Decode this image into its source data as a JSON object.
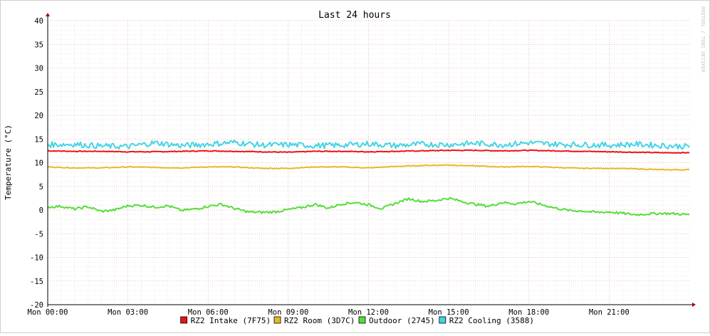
{
  "watermark": "RRDTOOL / TOBI OETIKER",
  "chart_data": {
    "type": "line",
    "title": "Last 24 hours",
    "xlabel": "",
    "ylabel": "Temperature (°C)",
    "ylim": [
      -20,
      40
    ],
    "y_ticks": [
      40,
      35,
      30,
      25,
      20,
      15,
      10,
      5,
      0,
      -5,
      -10,
      -15,
      -20
    ],
    "xlim_hours": [
      0,
      24
    ],
    "x_ticks": [
      {
        "label": "Mon 00:00",
        "hour": 0
      },
      {
        "label": "Mon 03:00",
        "hour": 3
      },
      {
        "label": "Mon 06:00",
        "hour": 6
      },
      {
        "label": "Mon 09:00",
        "hour": 9
      },
      {
        "label": "Mon 12:00",
        "hour": 12
      },
      {
        "label": "Mon 15:00",
        "hour": 15
      },
      {
        "label": "Mon 18:00",
        "hour": 18
      },
      {
        "label": "Mon 21:00",
        "hour": 21
      }
    ],
    "grid": true,
    "legend_position": "bottom",
    "series": [
      {
        "name": "RZ2 Intake (7F75)",
        "color": "#ee1111",
        "points": [
          [
            0,
            12.5
          ],
          [
            1,
            12.4
          ],
          [
            2,
            12.4
          ],
          [
            3,
            12.3
          ],
          [
            4,
            12.3
          ],
          [
            5,
            12.4
          ],
          [
            6,
            12.5
          ],
          [
            7,
            12.4
          ],
          [
            8,
            12.3
          ],
          [
            9,
            12.2
          ],
          [
            10,
            12.4
          ],
          [
            11,
            12.4
          ],
          [
            12,
            12.3
          ],
          [
            13,
            12.4
          ],
          [
            14,
            12.5
          ],
          [
            15,
            12.6
          ],
          [
            16,
            12.6
          ],
          [
            17,
            12.5
          ],
          [
            18,
            12.6
          ],
          [
            19,
            12.5
          ],
          [
            20,
            12.4
          ],
          [
            21,
            12.3
          ],
          [
            22,
            12.2
          ],
          [
            23,
            12.1
          ],
          [
            24,
            12.1
          ]
        ]
      },
      {
        "name": "RZ2 Room (3D7C)",
        "color": "#e8b828",
        "points": [
          [
            0,
            9.1
          ],
          [
            1,
            8.9
          ],
          [
            2,
            8.9
          ],
          [
            3,
            9.1
          ],
          [
            4,
            9.0
          ],
          [
            5,
            8.9
          ],
          [
            6,
            9.1
          ],
          [
            7,
            9.1
          ],
          [
            8,
            8.8
          ],
          [
            9,
            8.8
          ],
          [
            10,
            9.1
          ],
          [
            11,
            9.1
          ],
          [
            12,
            8.9
          ],
          [
            13,
            9.2
          ],
          [
            14,
            9.4
          ],
          [
            15,
            9.5
          ],
          [
            16,
            9.3
          ],
          [
            17,
            9.1
          ],
          [
            18,
            9.2
          ],
          [
            19,
            9.0
          ],
          [
            20,
            8.8
          ],
          [
            21,
            8.8
          ],
          [
            22,
            8.7
          ],
          [
            23,
            8.5
          ],
          [
            24,
            8.5
          ]
        ]
      },
      {
        "name": "Outdoor (2745)",
        "color": "#55dd3a",
        "points": [
          [
            0,
            0.6
          ],
          [
            0.5,
            0.8
          ],
          [
            1,
            0.2
          ],
          [
            1.5,
            0.7
          ],
          [
            2,
            -0.3
          ],
          [
            2.5,
            0.0
          ],
          [
            3,
            0.9
          ],
          [
            3.5,
            1.0
          ],
          [
            4,
            0.6
          ],
          [
            4.5,
            0.9
          ],
          [
            5,
            -0.1
          ],
          [
            5.5,
            0.2
          ],
          [
            6,
            0.8
          ],
          [
            6.5,
            1.2
          ],
          [
            7,
            0.3
          ],
          [
            7.5,
            -0.4
          ],
          [
            8,
            -0.5
          ],
          [
            8.5,
            -0.4
          ],
          [
            9,
            0.1
          ],
          [
            9.5,
            0.5
          ],
          [
            10,
            1.2
          ],
          [
            10.5,
            0.4
          ],
          [
            11,
            1.3
          ],
          [
            11.5,
            1.6
          ],
          [
            12,
            1.1
          ],
          [
            12.5,
            0.3
          ],
          [
            13,
            1.4
          ],
          [
            13.5,
            2.4
          ],
          [
            14,
            1.8
          ],
          [
            14.5,
            2.0
          ],
          [
            15,
            2.5
          ],
          [
            15.5,
            1.8
          ],
          [
            16,
            1.2
          ],
          [
            16.5,
            0.8
          ],
          [
            17,
            1.6
          ],
          [
            17.5,
            1.3
          ],
          [
            18,
            1.8
          ],
          [
            18.5,
            1.1
          ],
          [
            19,
            0.4
          ],
          [
            19.5,
            -0.1
          ],
          [
            20,
            -0.2
          ],
          [
            20.5,
            -0.5
          ],
          [
            21,
            -0.4
          ],
          [
            21.5,
            -0.7
          ],
          [
            22,
            -1.0
          ],
          [
            22.5,
            -0.8
          ],
          [
            23,
            -0.7
          ],
          [
            23.5,
            -0.8
          ],
          [
            24,
            -1.0
          ]
        ]
      },
      {
        "name": "RZ2 Cooling (3588)",
        "color": "#44d4e4",
        "points": [
          [
            0,
            13.8
          ],
          [
            1,
            13.9
          ],
          [
            2,
            13.5
          ],
          [
            3,
            13.4
          ],
          [
            4,
            14.2
          ],
          [
            5,
            13.6
          ],
          [
            6,
            13.9
          ],
          [
            7,
            14.3
          ],
          [
            8,
            13.7
          ],
          [
            9,
            13.8
          ],
          [
            10,
            13.6
          ],
          [
            11,
            13.7
          ],
          [
            12,
            14.0
          ],
          [
            13,
            13.6
          ],
          [
            14,
            13.9
          ],
          [
            15,
            13.8
          ],
          [
            16,
            14.1
          ],
          [
            17,
            13.8
          ],
          [
            18,
            14.2
          ],
          [
            19,
            13.9
          ],
          [
            20,
            13.8
          ],
          [
            21,
            13.7
          ],
          [
            22,
            13.9
          ],
          [
            23,
            13.6
          ],
          [
            24,
            13.4
          ]
        ]
      }
    ]
  }
}
